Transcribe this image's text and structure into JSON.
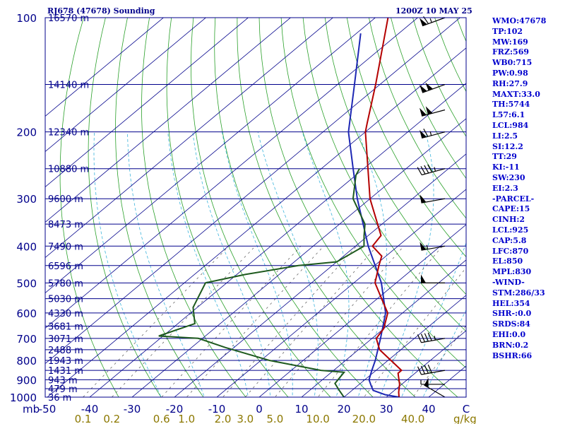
{
  "header": {
    "station": "RJ678 (47678) Sounding",
    "time": "1200Z 10 MAY 25"
  },
  "stats": [
    "WMO:47678",
    "TP:102",
    "MW:169",
    "FRZ:569",
    "WB0:715",
    "PW:0.98",
    "RH:27.9",
    "MAXT:33.0",
    "TH:5744",
    "L57:6.1",
    "LCL:984",
    "LI:2.5",
    "SI:12.2",
    "TT:29",
    "KI:-11",
    "SW:230",
    "EI:2.3",
    "-PARCEL-",
    "CAPE:15",
    "CINH:2",
    "LCL:925",
    "CAP:5.8",
    "LFC:870",
    "EL:850",
    "MPL:830",
    "-WIND-",
    "STM:286/33",
    "HEL:354",
    "SHR-:0.0",
    "SRDS:84",
    "EHI:0.0",
    "BRN:0.2",
    "BSHR:66"
  ],
  "colors": {
    "isobar": "#00008b",
    "isotherm": "#00008b",
    "dry_adiabat": "#2aa02a",
    "moist_adiabat": "#3cb4dc",
    "mixing_ratio": "#555555",
    "temperature": "#b40000",
    "dewpoint": "#1e5a1e",
    "parcel": "#1e28b4",
    "axis_text": "#00008b",
    "mixing_ratio_text": "#8c7800",
    "wind": "#000000"
  },
  "chart_data": {
    "type": "skew-t",
    "title": "RJ678 (47678) Sounding",
    "pressure_range": [
      1000,
      100
    ],
    "temperature_range": [
      -50,
      50
    ],
    "pressure_axis_label": "mb",
    "mixing_ratio_unit": "g/kg",
    "pressure_levels": [
      1000,
      900,
      800,
      700,
      600,
      500,
      400,
      300,
      200,
      100
    ],
    "temperature_ticks": [
      -50,
      -40,
      -30,
      -20,
      -10,
      0,
      10,
      20,
      30,
      40
    ],
    "mixing_ratio_ticks": [
      "0.1",
      "0.2",
      "0.6",
      "1.0",
      "2.0",
      "3.0",
      "5.0",
      "10.0",
      "20.0",
      "40.0"
    ],
    "height_labels": [
      {
        "p": 100,
        "h": "16570 m"
      },
      {
        "p": 150,
        "h": "14140 m"
      },
      {
        "p": 200,
        "h": "12340 m"
      },
      {
        "p": 250,
        "h": "10880 m"
      },
      {
        "p": 300,
        "h": "9600 m"
      },
      {
        "p": 350,
        "h": "8473 m"
      },
      {
        "p": 400,
        "h": "7490 m"
      },
      {
        "p": 450,
        "h": "6596 m"
      },
      {
        "p": 500,
        "h": "5780 m"
      },
      {
        "p": 550,
        "h": "5030 m"
      },
      {
        "p": 600,
        "h": "4330 m"
      },
      {
        "p": 650,
        "h": "3681 m"
      },
      {
        "p": 700,
        "h": "3071 m"
      },
      {
        "p": 750,
        "h": "2488 m"
      },
      {
        "p": 800,
        "h": "1943 m"
      },
      {
        "p": 850,
        "h": "1431 m"
      },
      {
        "p": 900,
        "h": "943 m"
      },
      {
        "p": 950,
        "h": "479 m"
      },
      {
        "p": 1000,
        "h": "36 m"
      }
    ],
    "temperature_profile": [
      {
        "p": 1000,
        "t": 33.0
      },
      {
        "p": 970,
        "t": 31.5
      },
      {
        "p": 925,
        "t": 29.5
      },
      {
        "p": 865,
        "t": 26.0
      },
      {
        "p": 850,
        "t": 26.0
      },
      {
        "p": 750,
        "t": 15.0
      },
      {
        "p": 700,
        "t": 11.0
      },
      {
        "p": 660,
        "t": 10.0
      },
      {
        "p": 600,
        "t": 6.5
      },
      {
        "p": 550,
        "t": 1.0
      },
      {
        "p": 500,
        "t": -5.0
      },
      {
        "p": 450,
        "t": -9.0
      },
      {
        "p": 425,
        "t": -11.0
      },
      {
        "p": 400,
        "t": -16.0
      },
      {
        "p": 375,
        "t": -17.0
      },
      {
        "p": 300,
        "t": -30.0
      },
      {
        "p": 250,
        "t": -39.0
      },
      {
        "p": 200,
        "t": -50.0
      },
      {
        "p": 190,
        "t": -52.0
      },
      {
        "p": 150,
        "t": -61.0
      },
      {
        "p": 100,
        "t": -77.0
      }
    ],
    "dewpoint_profile": [
      {
        "p": 1000,
        "td": 20.0
      },
      {
        "p": 960,
        "td": 17.0
      },
      {
        "p": 920,
        "td": 14.0
      },
      {
        "p": 860,
        "td": 13.0
      },
      {
        "p": 850,
        "td": 7.0
      },
      {
        "p": 800,
        "td": -8.0
      },
      {
        "p": 740,
        "td": -22.0
      },
      {
        "p": 700,
        "td": -31.0
      },
      {
        "p": 690,
        "td": -41.0
      },
      {
        "p": 640,
        "td": -36.0
      },
      {
        "p": 580,
        "td": -41.0
      },
      {
        "p": 500,
        "td": -45.0
      },
      {
        "p": 475,
        "td": -38.0
      },
      {
        "p": 450,
        "td": -28.0
      },
      {
        "p": 440,
        "td": -20.0
      },
      {
        "p": 400,
        "td": -18.0
      },
      {
        "p": 375,
        "td": -21.0
      },
      {
        "p": 350,
        "td": -24.0
      },
      {
        "p": 300,
        "td": -34.0
      },
      {
        "p": 260,
        "td": -40.0
      },
      {
        "p": 250,
        "td": -41.0
      }
    ],
    "parcel_profile": [
      {
        "p": 1000,
        "t": 33.0
      },
      {
        "p": 985,
        "t": 29.0
      },
      {
        "p": 960,
        "t": 25.0
      },
      {
        "p": 930,
        "t": 23.0
      },
      {
        "p": 900,
        "t": 21.0
      },
      {
        "p": 850,
        "t": 19.0
      },
      {
        "p": 800,
        "t": 17.0
      },
      {
        "p": 700,
        "t": 12.0
      },
      {
        "p": 600,
        "t": 6.0
      },
      {
        "p": 500,
        "t": -3.5
      },
      {
        "p": 400,
        "t": -17.0
      },
      {
        "p": 300,
        "t": -33.0
      },
      {
        "p": 250,
        "t": -42.5
      },
      {
        "p": 200,
        "t": -54.0
      },
      {
        "p": 150,
        "t": -66.0
      },
      {
        "p": 110,
        "t": -79.0
      }
    ],
    "winds": [
      {
        "p": 100,
        "dir": 250,
        "spd": 65
      },
      {
        "p": 150,
        "dir": 250,
        "spd": 100
      },
      {
        "p": 175,
        "dir": 255,
        "spd": 100
      },
      {
        "p": 200,
        "dir": 255,
        "spd": 65
      },
      {
        "p": 250,
        "dir": 255,
        "spd": 45
      },
      {
        "p": 300,
        "dir": 260,
        "spd": 50
      },
      {
        "p": 400,
        "dir": 260,
        "spd": 55
      },
      {
        "p": 500,
        "dir": 270,
        "spd": 50
      },
      {
        "p": 700,
        "dir": 260,
        "spd": 45
      },
      {
        "p": 850,
        "dir": 260,
        "spd": 40
      },
      {
        "p": 925,
        "dir": 270,
        "spd": 5
      },
      {
        "p": 1000,
        "dir": 300,
        "spd": 50
      }
    ]
  }
}
